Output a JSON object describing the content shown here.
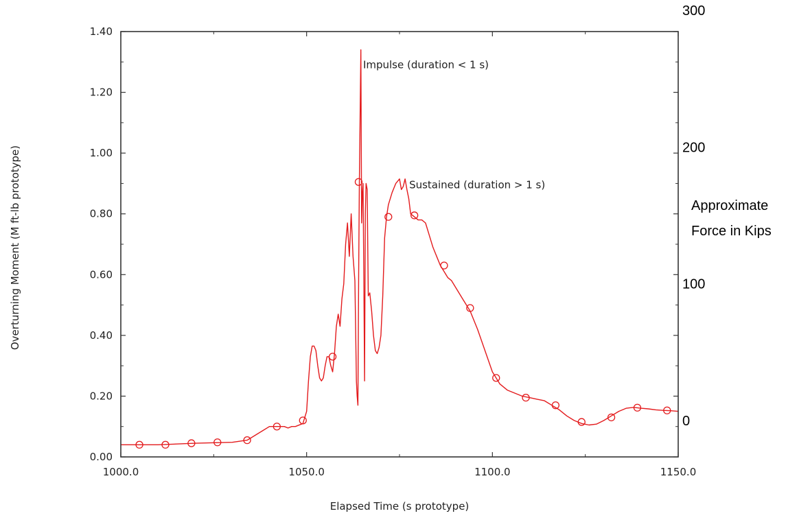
{
  "chart_data": {
    "type": "line",
    "xlabel": "Elapsed Time (s prototype)",
    "ylabel": "Overturning Moment (M ft-lb prototype)",
    "xlim": [
      1000,
      1150
    ],
    "ylim": [
      0,
      1.4
    ],
    "x_ticks": [
      "1000.0",
      "1050.0",
      "1100.0",
      "1150.0"
    ],
    "y_ticks": [
      "0.00",
      "0.20",
      "0.40",
      "0.60",
      "0.80",
      "1.00",
      "1.20",
      "1.40"
    ],
    "secondary_axis": {
      "title_lines": [
        "Approximate",
        "Force in Kips"
      ],
      "ticks": [
        {
          "label": "300",
          "value": 1.47
        },
        {
          "label": "200",
          "value": 1.02
        },
        {
          "label": "100",
          "value": 0.57
        },
        {
          "label": "0",
          "value": 0.12
        }
      ]
    },
    "annotations": [
      {
        "text": "Impulse (duration < 1 s)",
        "x": 1065.2,
        "y": 1.29
      },
      {
        "text": "Sustained (duration > 1 s)",
        "x": 1077.6,
        "y": 0.895
      }
    ],
    "series": [
      {
        "color": "#e31a1c",
        "marker": "circle-open",
        "x": [
          1000.0,
          1010.0,
          1020.0,
          1030.0,
          1034.0,
          1036.0,
          1038.0,
          1040.0,
          1042.0,
          1044.0,
          1045.0,
          1046.0,
          1047.0,
          1049.0,
          1050.0,
          1050.5,
          1051.0,
          1051.5,
          1052.0,
          1052.5,
          1053.0,
          1053.5,
          1054.0,
          1054.5,
          1055.0,
          1055.5,
          1056.0,
          1056.5,
          1057.0,
          1057.5,
          1058.0,
          1058.5,
          1059.0,
          1059.5,
          1060.0,
          1060.5,
          1061.0,
          1061.5,
          1062.0,
          1062.5,
          1063.0,
          1063.2,
          1063.4,
          1063.6,
          1063.8,
          1064.0,
          1064.2,
          1064.4,
          1064.6,
          1064.8,
          1065.0,
          1065.2,
          1065.4,
          1065.6,
          1065.8,
          1066.0,
          1066.3,
          1066.6,
          1067.0,
          1067.5,
          1068.0,
          1068.5,
          1069.0,
          1069.5,
          1070.0,
          1070.5,
          1071.0,
          1071.5,
          1072.0,
          1073.0,
          1074.0,
          1075.0,
          1075.5,
          1076.0,
          1076.5,
          1077.0,
          1077.5,
          1078.0,
          1079.0,
          1080.0,
          1081.0,
          1082.0,
          1083.0,
          1084.0,
          1085.0,
          1086.0,
          1087.0,
          1088.0,
          1089.0,
          1090.0,
          1092.0,
          1094.0,
          1096.0,
          1098.0,
          1100.0,
          1102.0,
          1104.0,
          1106.0,
          1108.0,
          1110.0,
          1112.0,
          1114.0,
          1116.0,
          1118.0,
          1120.0,
          1122.0,
          1124.0,
          1126.0,
          1128.0,
          1130.0,
          1132.0,
          1134.0,
          1136.0,
          1138.0,
          1140.0,
          1142.0,
          1144.0,
          1146.0,
          1148.0,
          1150.0
        ],
        "y": [
          0.04,
          0.04,
          0.045,
          0.048,
          0.055,
          0.07,
          0.085,
          0.1,
          0.1,
          0.1,
          0.095,
          0.1,
          0.1,
          0.11,
          0.15,
          0.25,
          0.33,
          0.365,
          0.365,
          0.35,
          0.3,
          0.26,
          0.25,
          0.26,
          0.3,
          0.33,
          0.33,
          0.3,
          0.28,
          0.34,
          0.43,
          0.47,
          0.43,
          0.52,
          0.57,
          0.7,
          0.77,
          0.66,
          0.8,
          0.66,
          0.58,
          0.42,
          0.25,
          0.2,
          0.17,
          0.6,
          0.9,
          1.12,
          1.34,
          0.77,
          0.87,
          0.9,
          0.6,
          0.25,
          0.8,
          0.9,
          0.88,
          0.53,
          0.54,
          0.48,
          0.4,
          0.35,
          0.34,
          0.36,
          0.4,
          0.53,
          0.72,
          0.79,
          0.83,
          0.87,
          0.9,
          0.915,
          0.88,
          0.89,
          0.915,
          0.88,
          0.85,
          0.8,
          0.79,
          0.78,
          0.78,
          0.77,
          0.73,
          0.69,
          0.66,
          0.63,
          0.61,
          0.59,
          0.58,
          0.56,
          0.52,
          0.48,
          0.42,
          0.35,
          0.28,
          0.24,
          0.22,
          0.21,
          0.2,
          0.195,
          0.19,
          0.185,
          0.17,
          0.155,
          0.135,
          0.12,
          0.11,
          0.105,
          0.108,
          0.12,
          0.135,
          0.15,
          0.16,
          0.163,
          0.16,
          0.158,
          0.155,
          0.153,
          0.152,
          0.15
        ],
        "markers_x": [
          1005.0,
          1012.0,
          1019.0,
          1026.0,
          1034.0,
          1042.0,
          1049.0,
          1057.0,
          1064.0,
          1072.0,
          1079.0,
          1087.0,
          1094.0,
          1101.0,
          1109.0,
          1117.0,
          1124.0,
          1132.0,
          1139.0,
          1147.0
        ],
        "markers_y": [
          0.04,
          0.04,
          0.045,
          0.048,
          0.055,
          0.1,
          0.12,
          0.33,
          0.905,
          0.79,
          0.795,
          0.63,
          0.49,
          0.26,
          0.195,
          0.17,
          0.115,
          0.13,
          0.162,
          0.153
        ]
      }
    ]
  }
}
